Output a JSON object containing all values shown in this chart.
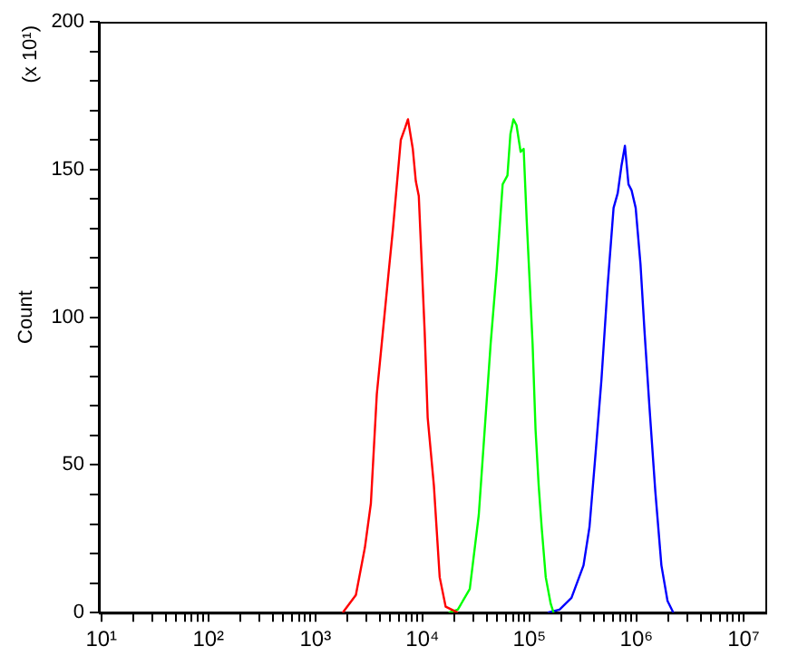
{
  "chart_data": {
    "type": "line",
    "ylabel": "Count",
    "annotations": [
      "(x 10¹)"
    ],
    "xlim": [
      9.5,
      16000000
    ],
    "ylim": [
      0,
      200
    ],
    "log": "x",
    "grid": false,
    "legend": false,
    "marker": "none",
    "line_style": "solid",
    "xticks": [
      {
        "value": 10,
        "label": "10¹"
      },
      {
        "value": 20,
        "label": null
      },
      {
        "value": 30,
        "label": null
      },
      {
        "value": 40,
        "label": null
      },
      {
        "value": 50,
        "label": null
      },
      {
        "value": 60,
        "label": null
      },
      {
        "value": 70,
        "label": null
      },
      {
        "value": 80,
        "label": null
      },
      {
        "value": 90,
        "label": null
      },
      {
        "value": 100,
        "label": "10²"
      },
      {
        "value": 200,
        "label": null
      },
      {
        "value": 300,
        "label": null
      },
      {
        "value": 400,
        "label": null
      },
      {
        "value": 500,
        "label": null
      },
      {
        "value": 600,
        "label": null
      },
      {
        "value": 700,
        "label": null
      },
      {
        "value": 800,
        "label": null
      },
      {
        "value": 900,
        "label": null
      },
      {
        "value": 1000,
        "label": "10³"
      },
      {
        "value": 2000,
        "label": null
      },
      {
        "value": 3000,
        "label": null
      },
      {
        "value": 4000,
        "label": null
      },
      {
        "value": 5000,
        "label": null
      },
      {
        "value": 6000,
        "label": null
      },
      {
        "value": 7000,
        "label": null
      },
      {
        "value": 8000,
        "label": null
      },
      {
        "value": 9000,
        "label": null
      },
      {
        "value": 10000,
        "label": "10⁴"
      },
      {
        "value": 20000,
        "label": null
      },
      {
        "value": 30000,
        "label": null
      },
      {
        "value": 40000,
        "label": null
      },
      {
        "value": 50000,
        "label": null
      },
      {
        "value": 60000,
        "label": null
      },
      {
        "value": 70000,
        "label": null
      },
      {
        "value": 80000,
        "label": null
      },
      {
        "value": 90000,
        "label": null
      },
      {
        "value": 100000,
        "label": "10⁵"
      },
      {
        "value": 200000,
        "label": null
      },
      {
        "value": 300000,
        "label": null
      },
      {
        "value": 400000,
        "label": null
      },
      {
        "value": 500000,
        "label": null
      },
      {
        "value": 600000,
        "label": null
      },
      {
        "value": 700000,
        "label": null
      },
      {
        "value": 800000,
        "label": null
      },
      {
        "value": 900000,
        "label": null
      },
      {
        "value": 1000000,
        "label": "10⁶"
      },
      {
        "value": 2000000,
        "label": null
      },
      {
        "value": 3000000,
        "label": null
      },
      {
        "value": 4000000,
        "label": null
      },
      {
        "value": 5000000,
        "label": null
      },
      {
        "value": 6000000,
        "label": null
      },
      {
        "value": 7000000,
        "label": null
      },
      {
        "value": 8000000,
        "label": null
      },
      {
        "value": 9000000,
        "label": null
      },
      {
        "value": 10000000,
        "label": "10⁷"
      }
    ],
    "yticks": [
      0,
      {
        "value": 10,
        "label": null
      },
      {
        "value": 20,
        "label": null
      },
      {
        "value": 30,
        "label": null
      },
      {
        "value": 40,
        "label": null
      },
      50,
      {
        "value": 60,
        "label": null
      },
      {
        "value": 70,
        "label": null
      },
      {
        "value": 80,
        "label": null
      },
      {
        "value": 90,
        "label": null
      },
      100,
      {
        "value": 110,
        "label": null
      },
      {
        "value": 120,
        "label": null
      },
      {
        "value": 130,
        "label": null
      },
      {
        "value": 140,
        "label": null
      },
      150,
      {
        "value": 160,
        "label": null
      },
      {
        "value": 170,
        "label": null
      },
      {
        "value": 180,
        "label": null
      },
      {
        "value": 190,
        "label": null
      },
      200
    ],
    "series": [
      {
        "color": "#ff0000",
        "x": [
          1800,
          2390,
          2900,
          3300,
          3750,
          4270,
          4860,
          5310,
          6280,
          6880,
          7330,
          8130,
          8680,
          9250,
          9860,
          10500,
          11200,
          12800,
          14500,
          16500,
          21400
        ],
        "values": [
          0,
          6,
          22,
          37,
          74,
          95,
          116,
          130,
          160,
          164,
          167,
          157,
          146,
          141,
          118,
          95,
          66,
          43,
          12,
          2,
          0
        ]
      },
      {
        "color": "#00ff00",
        "x": [
          17600,
          21400,
          27700,
          33600,
          38200,
          43400,
          49400,
          56200,
          62300,
          66400,
          70900,
          75700,
          82700,
          88300,
          94200,
          100500,
          107000,
          114000,
          122000,
          130000,
          142000,
          158000,
          168000
        ],
        "values": [
          0,
          1,
          8,
          33,
          62,
          91,
          116,
          145,
          148,
          162,
          167,
          165,
          156,
          157,
          133,
          112,
          91,
          62,
          43,
          29,
          12,
          3,
          0
        ]
      },
      {
        "color": "#0000ff",
        "x": [
          148000,
          191000,
          247000,
          320000,
          364000,
          415000,
          471000,
          536000,
          611000,
          668000,
          722000,
          780000,
          842000,
          899000,
          983000,
          1090000,
          1190000,
          1320000,
          1500000,
          1710000,
          1950000,
          2210000
        ],
        "values": [
          0,
          1,
          5,
          16,
          29,
          54,
          79,
          110,
          137,
          142,
          151,
          158,
          145,
          143,
          137,
          118,
          95,
          70,
          41,
          16,
          4,
          0
        ]
      }
    ]
  }
}
